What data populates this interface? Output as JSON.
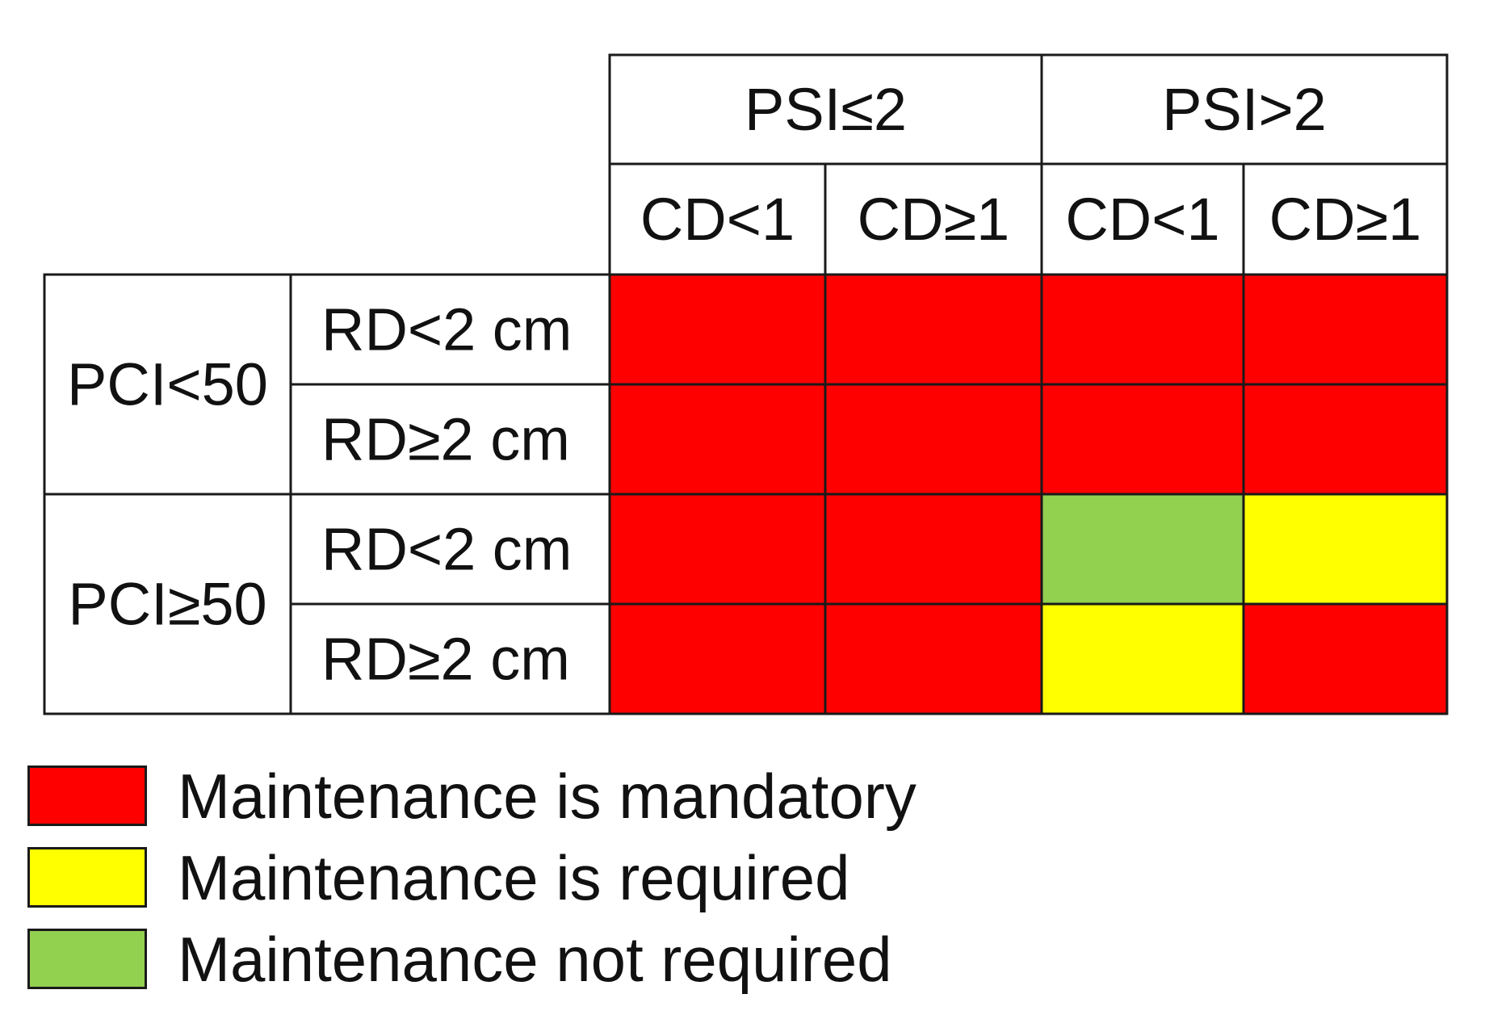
{
  "colors": {
    "mandatory": "#ff0000",
    "required": "#ffff00",
    "not_required": "#92d050",
    "border": "#1a1a1a",
    "background": "#ffffff"
  },
  "matrix": {
    "psi_groups": [
      {
        "label": "PSI≤2",
        "cd_labels": [
          "CD<1",
          "CD≥1"
        ]
      },
      {
        "label": "PSI>2",
        "cd_labels": [
          "CD<1",
          "CD≥1"
        ]
      }
    ],
    "pci_groups": [
      {
        "label": "PCI<50",
        "rd_labels": [
          "RD<2 cm",
          "RD≥2 cm"
        ]
      },
      {
        "label": "PCI≥50",
        "rd_labels": [
          "RD<2 cm",
          "RD≥2 cm"
        ]
      }
    ],
    "cells": [
      [
        "mandatory",
        "mandatory",
        "mandatory",
        "mandatory"
      ],
      [
        "mandatory",
        "mandatory",
        "mandatory",
        "mandatory"
      ],
      [
        "mandatory",
        "mandatory",
        "not_required",
        "required"
      ],
      [
        "mandatory",
        "mandatory",
        "required",
        "mandatory"
      ]
    ]
  },
  "legend": [
    {
      "key": "mandatory",
      "label": "Maintenance is mandatory"
    },
    {
      "key": "required",
      "label": "Maintenance is required"
    },
    {
      "key": "not_required",
      "label": "Maintenance not required"
    }
  ]
}
